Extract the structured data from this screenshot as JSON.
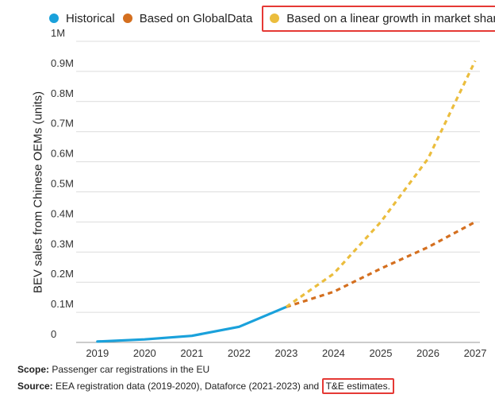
{
  "legend": [
    {
      "label": "Historical",
      "color": "#1aa1db"
    },
    {
      "label": "Based on GlobalData",
      "color": "#d46f1f"
    },
    {
      "label": "Based on a linear growth in market share",
      "color": "#ebbd3d"
    }
  ],
  "footer": {
    "scope_label": "Scope:",
    "scope_text": " Passenger car registrations in the EU",
    "source_label": "Source:",
    "source_text": " EEA registration data (2019-2020), Dataforce (2021-2023) and ",
    "source_highlight": "T&E estimates."
  },
  "chart_data": {
    "type": "line",
    "title": "",
    "xlabel": "",
    "ylabel": "BEV sales from Chinese OEMs (units)",
    "x": [
      2019,
      2020,
      2021,
      2022,
      2023,
      2024,
      2025,
      2026,
      2027
    ],
    "ylim": [
      0,
      1000000
    ],
    "yticks": [
      0,
      100000,
      200000,
      300000,
      400000,
      500000,
      600000,
      700000,
      800000,
      900000,
      1000000
    ],
    "ytick_labels": [
      "0",
      "0.1M",
      "0.2M",
      "0.3M",
      "0.4M",
      "0.5M",
      "0.6M",
      "0.7M",
      "0.8M",
      "0.9M",
      "1M"
    ],
    "grid": true,
    "legend_position": "top-left",
    "series": [
      {
        "name": "Historical",
        "style": "solid",
        "color": "#1aa1db",
        "x": [
          2019,
          2020,
          2021,
          2022,
          2023
        ],
        "values": [
          3000,
          10000,
          22000,
          52000,
          118000
        ]
      },
      {
        "name": "Based on GlobalData",
        "style": "dashed",
        "color": "#d46f1f",
        "x": [
          2023,
          2024,
          2025,
          2026,
          2027
        ],
        "values": [
          118000,
          168000,
          245000,
          316000,
          400000
        ]
      },
      {
        "name": "Based on a linear growth in market share",
        "style": "dashed",
        "color": "#ebbd3d",
        "x": [
          2023,
          2024,
          2025,
          2026,
          2027
        ],
        "values": [
          118000,
          228000,
          400000,
          610000,
          935000
        ]
      }
    ]
  }
}
